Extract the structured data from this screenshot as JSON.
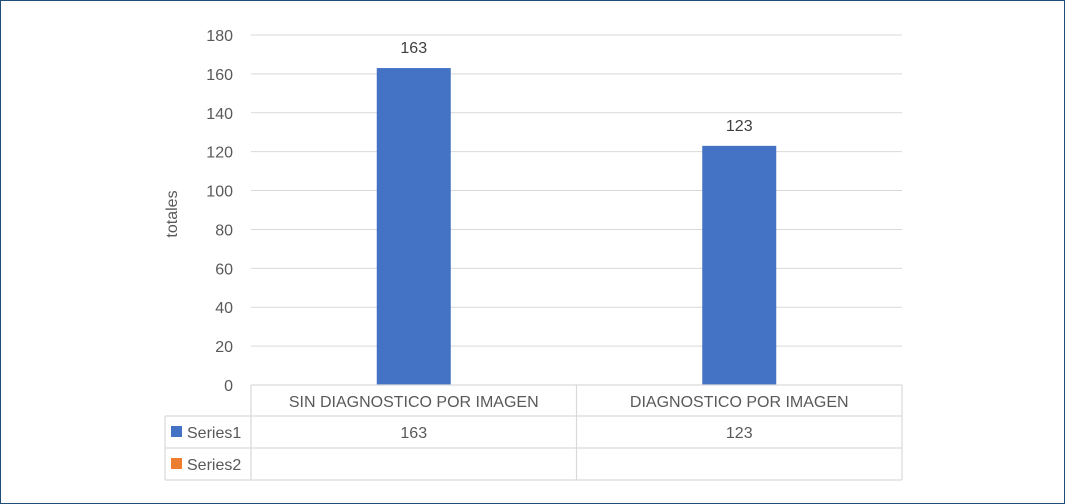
{
  "chart_data": {
    "type": "bar",
    "ylabel": "totales",
    "ylim": [
      0,
      180
    ],
    "yticks": [
      0,
      20,
      40,
      60,
      80,
      100,
      120,
      140,
      160,
      180
    ],
    "grid": true,
    "categories": [
      "SIN DIAGNOSTICO POR IMAGEN",
      "DIAGNOSTICO POR IMAGEN"
    ],
    "series": [
      {
        "name": "Series1",
        "values": [
          163,
          123
        ],
        "color": "#4472c4",
        "data_labels": [
          "163",
          "123"
        ]
      },
      {
        "name": "Series2",
        "values": [
          null,
          null
        ],
        "color": "#ed7d31"
      }
    ],
    "legend": "data-table"
  }
}
